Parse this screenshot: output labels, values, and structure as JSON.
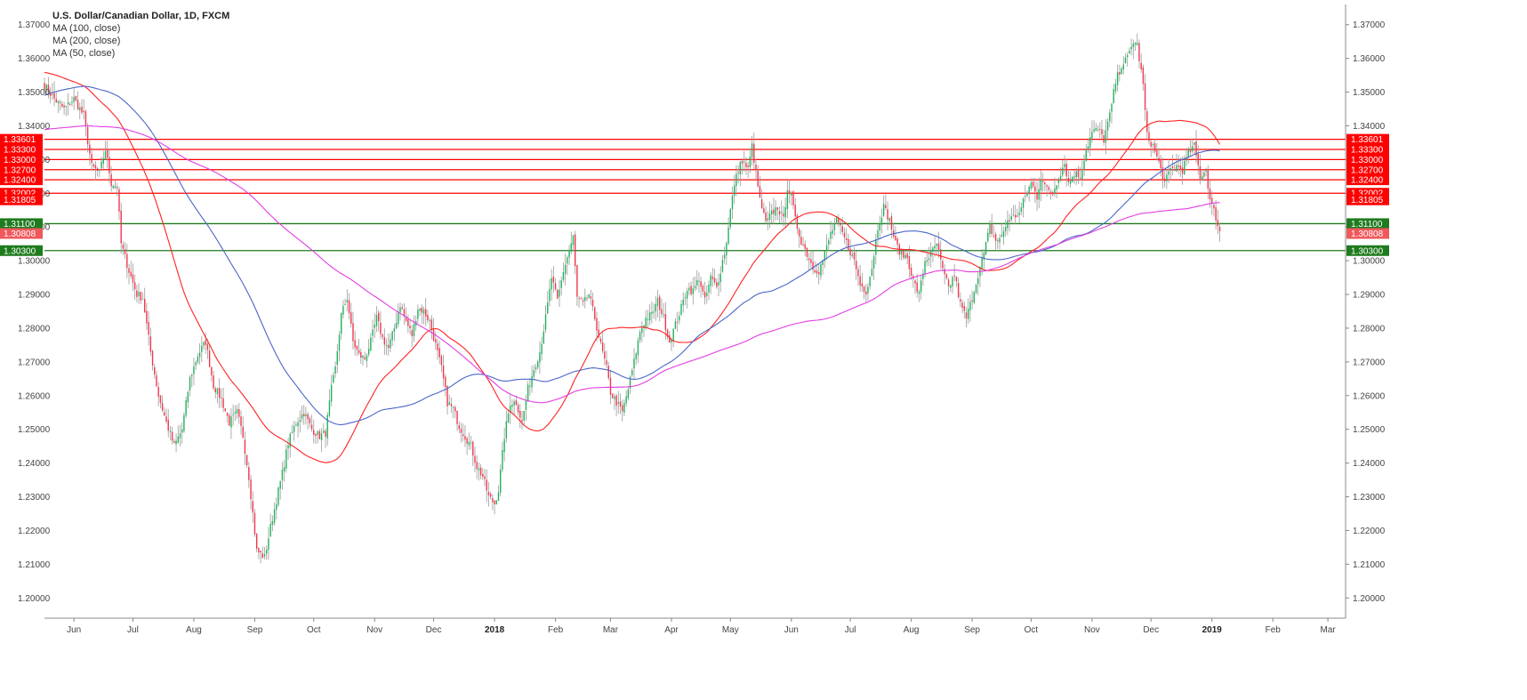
{
  "chart_data": {
    "type": "candlestick",
    "title": "U.S. Dollar/Canadian Dollar, 1D, FXCM",
    "indicators": [
      "MA (100, close)",
      "MA (200, close)",
      "MA (50, close)"
    ],
    "ylim": [
      1.194,
      1.376
    ],
    "y_ticks": [
      "1.20000",
      "1.21000",
      "1.22000",
      "1.23000",
      "1.24000",
      "1.25000",
      "1.26000",
      "1.27000",
      "1.28000",
      "1.29000",
      "1.30000",
      "1.31000",
      "1.32000",
      "1.33000",
      "1.34000",
      "1.35000",
      "1.36000",
      "1.37000"
    ],
    "x_ticks": [
      {
        "label": "Jun",
        "t": 5,
        "bold": false
      },
      {
        "label": "Jul",
        "t": 35,
        "bold": false
      },
      {
        "label": "Aug",
        "t": 66,
        "bold": false
      },
      {
        "label": "Sep",
        "t": 97,
        "bold": false
      },
      {
        "label": "Oct",
        "t": 127,
        "bold": false
      },
      {
        "label": "Nov",
        "t": 158,
        "bold": false
      },
      {
        "label": "Dec",
        "t": 188,
        "bold": false
      },
      {
        "label": "2018",
        "t": 219,
        "bold": true
      },
      {
        "label": "Feb",
        "t": 250,
        "bold": false
      },
      {
        "label": "Mar",
        "t": 278,
        "bold": false
      },
      {
        "label": "Apr",
        "t": 309,
        "bold": false
      },
      {
        "label": "May",
        "t": 339,
        "bold": false
      },
      {
        "label": "Jun",
        "t": 370,
        "bold": false
      },
      {
        "label": "Jul",
        "t": 400,
        "bold": false
      },
      {
        "label": "Aug",
        "t": 431,
        "bold": false
      },
      {
        "label": "Sep",
        "t": 462,
        "bold": false
      },
      {
        "label": "Oct",
        "t": 492,
        "bold": false
      },
      {
        "label": "Nov",
        "t": 523,
        "bold": false
      },
      {
        "label": "Dec",
        "t": 553,
        "bold": false
      },
      {
        "label": "2019",
        "t": 584,
        "bold": true
      },
      {
        "label": "Feb",
        "t": 615,
        "bold": false
      },
      {
        "label": "Mar",
        "t": 643,
        "bold": false
      }
    ],
    "x_range": [
      -10,
      652
    ],
    "levels": [
      {
        "label": "1.33601",
        "value": 1.33601,
        "color": "#ff0000"
      },
      {
        "label": "1.33300",
        "value": 1.333,
        "color": "#ff0000"
      },
      {
        "label": "1.33000",
        "value": 1.33,
        "color": "#ff0000"
      },
      {
        "label": "1.32700",
        "value": 1.327,
        "color": "#ff0000"
      },
      {
        "label": "1.32400",
        "value": 1.324,
        "color": "#ff0000"
      },
      {
        "label": "1.32002",
        "value": 1.32002,
        "color": "#ff0000"
      },
      {
        "label": "1.31100",
        "value": 1.311,
        "color": "#1e7b1e"
      },
      {
        "label": "1.30300",
        "value": 1.303,
        "color": "#1e7b1e"
      }
    ],
    "price_labels": [
      {
        "label": "1.31805",
        "value": 1.31805,
        "color": "#ff0000"
      },
      {
        "label": "1.30808",
        "value": 1.30808,
        "color": "#f0585b"
      }
    ],
    "close_anchors": [
      [
        -10,
        1.352
      ],
      [
        -5,
        1.348
      ],
      [
        0,
        1.345
      ],
      [
        5,
        1.348
      ],
      [
        10,
        1.343
      ],
      [
        14,
        1.328
      ],
      [
        18,
        1.326
      ],
      [
        21,
        1.333
      ],
      [
        24,
        1.323
      ],
      [
        27,
        1.322
      ],
      [
        29,
        1.305
      ],
      [
        33,
        1.297
      ],
      [
        37,
        1.29
      ],
      [
        40,
        1.289
      ],
      [
        44,
        1.273
      ],
      [
        48,
        1.26
      ],
      [
        52,
        1.252
      ],
      [
        56,
        1.245
      ],
      [
        60,
        1.25
      ],
      [
        64,
        1.265
      ],
      [
        68,
        1.272
      ],
      [
        72,
        1.276
      ],
      [
        76,
        1.263
      ],
      [
        80,
        1.259
      ],
      [
        84,
        1.252
      ],
      [
        88,
        1.255
      ],
      [
        91,
        1.248
      ],
      [
        94,
        1.236
      ],
      [
        98,
        1.214
      ],
      [
        102,
        1.212
      ],
      [
        105,
        1.221
      ],
      [
        108,
        1.229
      ],
      [
        111,
        1.237
      ],
      [
        114,
        1.246
      ],
      [
        118,
        1.252
      ],
      [
        122,
        1.255
      ],
      [
        126,
        1.25
      ],
      [
        130,
        1.248
      ],
      [
        133,
        1.249
      ],
      [
        136,
        1.262
      ],
      [
        138,
        1.268
      ],
      [
        141,
        1.284
      ],
      [
        144,
        1.289
      ],
      [
        147,
        1.276
      ],
      [
        150,
        1.272
      ],
      [
        153,
        1.271
      ],
      [
        156,
        1.276
      ],
      [
        159,
        1.283
      ],
      [
        162,
        1.277
      ],
      [
        165,
        1.274
      ],
      [
        168,
        1.28
      ],
      [
        171,
        1.287
      ],
      [
        174,
        1.282
      ],
      [
        177,
        1.278
      ],
      [
        180,
        1.286
      ],
      [
        183,
        1.285
      ],
      [
        186,
        1.282
      ],
      [
        189,
        1.275
      ],
      [
        192,
        1.268
      ],
      [
        195,
        1.258
      ],
      [
        198,
        1.256
      ],
      [
        201,
        1.251
      ],
      [
        204,
        1.248
      ],
      [
        207,
        1.245
      ],
      [
        210,
        1.239
      ],
      [
        213,
        1.236
      ],
      [
        216,
        1.23
      ],
      [
        219,
        1.228
      ],
      [
        221,
        1.232
      ],
      [
        224,
        1.248
      ],
      [
        227,
        1.258
      ],
      [
        230,
        1.258
      ],
      [
        233,
        1.252
      ],
      [
        236,
        1.262
      ],
      [
        239,
        1.268
      ],
      [
        242,
        1.273
      ],
      [
        245,
        1.283
      ],
      [
        248,
        1.295
      ],
      [
        251,
        1.288
      ],
      [
        254,
        1.297
      ],
      [
        257,
        1.303
      ],
      [
        259,
        1.307
      ],
      [
        261,
        1.289
      ],
      [
        264,
        1.287
      ],
      [
        267,
        1.29
      ],
      [
        270,
        1.283
      ],
      [
        273,
        1.275
      ],
      [
        276,
        1.268
      ],
      [
        278,
        1.261
      ],
      [
        281,
        1.258
      ],
      [
        284,
        1.255
      ],
      [
        287,
        1.262
      ],
      [
        290,
        1.27
      ],
      [
        293,
        1.279
      ],
      [
        296,
        1.283
      ],
      [
        299,
        1.284
      ],
      [
        302,
        1.288
      ],
      [
        305,
        1.283
      ],
      [
        308,
        1.276
      ],
      [
        311,
        1.281
      ],
      [
        314,
        1.286
      ],
      [
        317,
        1.292
      ],
      [
        320,
        1.291
      ],
      [
        323,
        1.295
      ],
      [
        326,
        1.288
      ],
      [
        329,
        1.295
      ],
      [
        332,
        1.292
      ],
      [
        335,
        1.3
      ],
      [
        337,
        1.305
      ],
      [
        339,
        1.316
      ],
      [
        342,
        1.325
      ],
      [
        345,
        1.33
      ],
      [
        348,
        1.327
      ],
      [
        350,
        1.334
      ],
      [
        352,
        1.326
      ],
      [
        354,
        1.318
      ],
      [
        357,
        1.311
      ],
      [
        360,
        1.314
      ],
      [
        363,
        1.316
      ],
      [
        366,
        1.312
      ],
      [
        368,
        1.322
      ],
      [
        370,
        1.319
      ],
      [
        372,
        1.312
      ],
      [
        375,
        1.306
      ],
      [
        378,
        1.302
      ],
      [
        381,
        1.298
      ],
      [
        384,
        1.297
      ],
      [
        387,
        1.302
      ],
      [
        390,
        1.308
      ],
      [
        393,
        1.312
      ],
      [
        396,
        1.308
      ],
      [
        399,
        1.304
      ],
      [
        402,
        1.3
      ],
      [
        405,
        1.293
      ],
      [
        408,
        1.291
      ],
      [
        411,
        1.298
      ],
      [
        414,
        1.31
      ],
      [
        417,
        1.316
      ],
      [
        420,
        1.312
      ],
      [
        423,
        1.305
      ],
      [
        426,
        1.302
      ],
      [
        429,
        1.301
      ],
      [
        432,
        1.294
      ],
      [
        435,
        1.29
      ],
      [
        438,
        1.3
      ],
      [
        441,
        1.302
      ],
      [
        444,
        1.305
      ],
      [
        447,
        1.297
      ],
      [
        450,
        1.292
      ],
      [
        453,
        1.296
      ],
      [
        456,
        1.287
      ],
      [
        459,
        1.283
      ],
      [
        462,
        1.289
      ],
      [
        465,
        1.296
      ],
      [
        468,
        1.302
      ],
      [
        471,
        1.31
      ],
      [
        474,
        1.306
      ],
      [
        477,
        1.307
      ],
      [
        480,
        1.312
      ],
      [
        483,
        1.313
      ],
      [
        486,
        1.314
      ],
      [
        489,
        1.319
      ],
      [
        492,
        1.323
      ],
      [
        495,
        1.319
      ],
      [
        497,
        1.325
      ],
      [
        500,
        1.321
      ],
      [
        503,
        1.32
      ],
      [
        506,
        1.325
      ],
      [
        509,
        1.329
      ],
      [
        511,
        1.323
      ],
      [
        514,
        1.326
      ],
      [
        517,
        1.325
      ],
      [
        520,
        1.333
      ],
      [
        523,
        1.338
      ],
      [
        526,
        1.339
      ],
      [
        529,
        1.336
      ],
      [
        532,
        1.343
      ],
      [
        535,
        1.353
      ],
      [
        538,
        1.358
      ],
      [
        541,
        1.36
      ],
      [
        544,
        1.365
      ],
      [
        546,
        1.364
      ],
      [
        549,
        1.352
      ],
      [
        551,
        1.337
      ],
      [
        554,
        1.334
      ],
      [
        557,
        1.329
      ],
      [
        560,
        1.323
      ],
      [
        563,
        1.327
      ],
      [
        566,
        1.328
      ],
      [
        569,
        1.327
      ],
      [
        572,
        1.332
      ],
      [
        575,
        1.334
      ],
      [
        578,
        1.325
      ],
      [
        581,
        1.327
      ],
      [
        583,
        1.318
      ],
      [
        586,
        1.313
      ],
      [
        588,
        1.3085
      ]
    ]
  }
}
